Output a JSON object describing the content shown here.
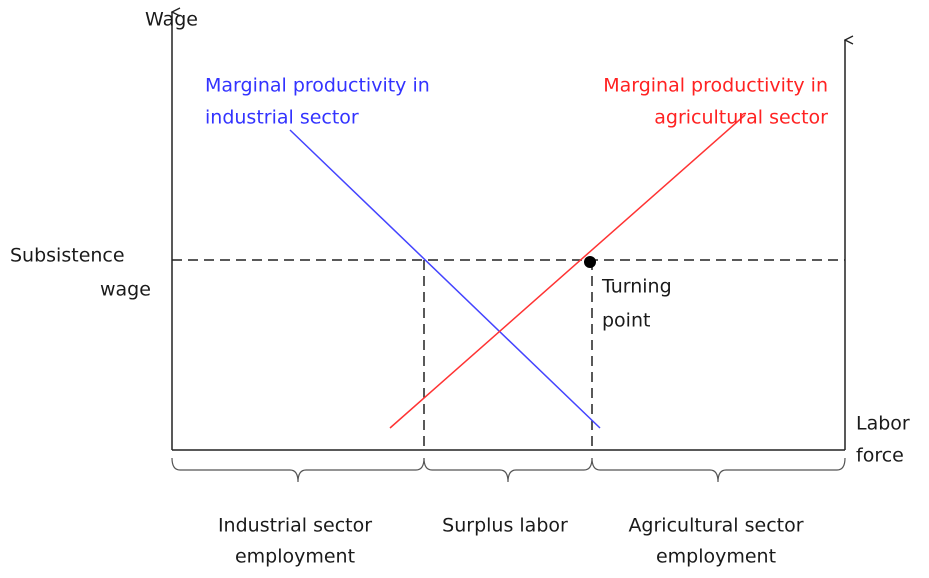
{
  "y_axis_label": "Wage",
  "x_axis_label": [
    "Labor",
    "force"
  ],
  "subsistence_label": [
    "Subsistence",
    "wage"
  ],
  "industrial_curve_label": [
    "Marginal productivity in",
    "industrial sector"
  ],
  "agricultural_curve_label": [
    "Marginal productivity in",
    "agricultural sector"
  ],
  "turning_point_label": [
    "Turning",
    "point"
  ],
  "segments": [
    [
      "Industrial sector",
      "employment"
    ],
    [
      "Surplus labor"
    ],
    [
      "Agricultural sector",
      "employment"
    ]
  ]
}
